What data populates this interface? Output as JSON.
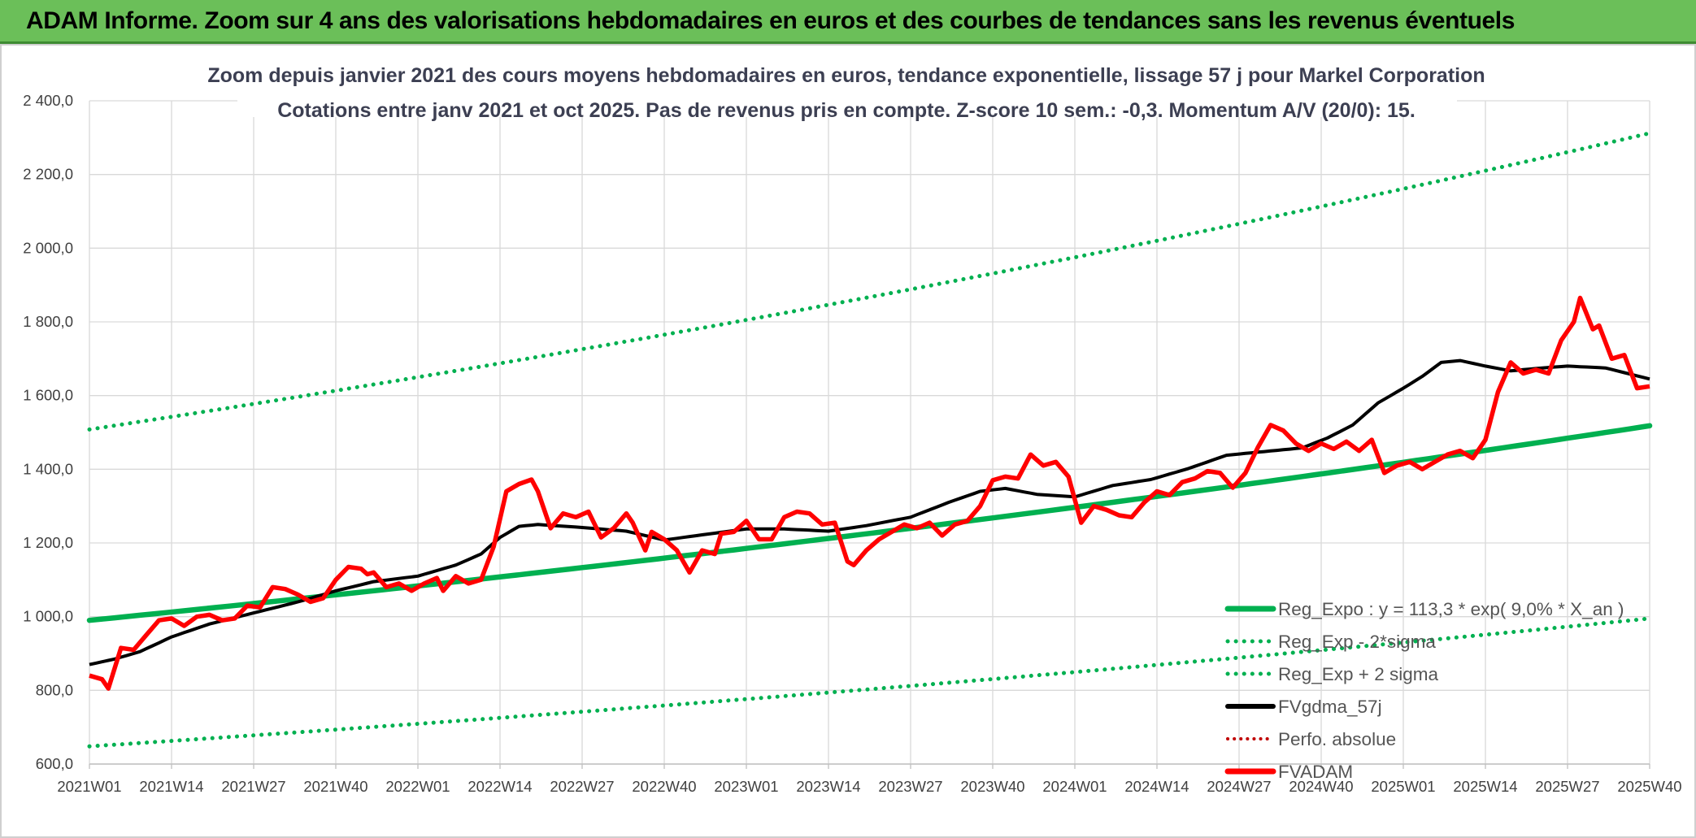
{
  "header": {
    "banner": "ADAM Informe. Zoom sur 4 ans des valorisations hebdomadaires en euros et des courbes de tendances sans les revenus éventuels"
  },
  "colors": {
    "banner_bg": "#6bbf59",
    "reg_expo": "#00b050",
    "fv_adam": "#ff0000",
    "fv_gdma": "#000000",
    "perfo": "#c00000",
    "grid": "#d9d9d9"
  },
  "chart_data": {
    "type": "line",
    "title": "Zoom depuis janvier 2021 des cours moyens hebdomadaires en euros, tendance exponentielle, lissage 57 j pour Markel Corporation",
    "subtitle": "Cotations entre janv 2021 et oct 2025. Pas de revenus pris en compte. Z-score 10 sem.: -0,3. Momentum A/V (20/0): 15.",
    "xlabel": "",
    "ylabel": "",
    "ylim": [
      600,
      2400
    ],
    "yticks": [
      600,
      800,
      1000,
      1200,
      1400,
      1600,
      1800,
      2000,
      2200,
      2400
    ],
    "ytick_labels": [
      "600,0",
      "800,0",
      "1 000,0",
      "1 200,0",
      "1 400,0",
      "1 600,0",
      "1 800,0",
      "2 000,0",
      "2 200,0",
      "2 400,0"
    ],
    "x_count": 248,
    "x_tick_index": [
      0,
      13,
      26,
      39,
      52,
      65,
      78,
      91,
      104,
      117,
      130,
      143,
      156,
      169,
      182,
      195,
      208,
      221,
      234,
      247
    ],
    "x_tick_labels": [
      "2021W01",
      "2021W14",
      "2021W27",
      "2021W40",
      "2022W01",
      "2022W14",
      "2022W27",
      "2022W40",
      "2023W01",
      "2023W14",
      "2023W27",
      "2023W40",
      "2024W01",
      "2024W14",
      "2024W27",
      "2024W40",
      "2025W01",
      "2025W14",
      "2025W27",
      "2025W40"
    ],
    "grid": true,
    "legend_position": "bottom-right",
    "series": [
      {
        "name": "Reg_Expo : y = 113,3 * exp( 9,0% *  X_an )",
        "style": "solid-thick",
        "color": "#00b050",
        "start": 990,
        "end": 1518
      },
      {
        "name": "Reg_Exp - 2*sigma",
        "style": "dotted",
        "color": "#00b050",
        "start": 648,
        "end": 995
      },
      {
        "name": "Reg_Exp + 2 sigma",
        "style": "dotted",
        "color": "#00b050",
        "start": 1508,
        "end": 2312
      },
      {
        "name": "FVgdma_57j",
        "style": "solid",
        "color": "#000000",
        "anchors": [
          [
            0,
            870
          ],
          [
            4,
            885
          ],
          [
            8,
            905
          ],
          [
            13,
            945
          ],
          [
            19,
            980
          ],
          [
            26,
            1010
          ],
          [
            33,
            1040
          ],
          [
            39,
            1070
          ],
          [
            45,
            1095
          ],
          [
            52,
            1110
          ],
          [
            58,
            1140
          ],
          [
            62,
            1170
          ],
          [
            65,
            1215
          ],
          [
            68,
            1245
          ],
          [
            71,
            1250
          ],
          [
            78,
            1242
          ],
          [
            85,
            1232
          ],
          [
            91,
            1208
          ],
          [
            97,
            1222
          ],
          [
            104,
            1238
          ],
          [
            110,
            1238
          ],
          [
            117,
            1232
          ],
          [
            123,
            1247
          ],
          [
            130,
            1270
          ],
          [
            136,
            1310
          ],
          [
            141,
            1340
          ],
          [
            145,
            1348
          ],
          [
            150,
            1332
          ],
          [
            156,
            1325
          ],
          [
            162,
            1356
          ],
          [
            168,
            1372
          ],
          [
            174,
            1402
          ],
          [
            180,
            1438
          ],
          [
            186,
            1448
          ],
          [
            192,
            1458
          ],
          [
            196,
            1485
          ],
          [
            200,
            1520
          ],
          [
            204,
            1580
          ],
          [
            208,
            1620
          ],
          [
            211,
            1652
          ],
          [
            214,
            1690
          ],
          [
            217,
            1695
          ],
          [
            221,
            1680
          ],
          [
            225,
            1667
          ],
          [
            230,
            1675
          ],
          [
            234,
            1680
          ],
          [
            240,
            1675
          ],
          [
            247,
            1645
          ]
        ]
      },
      {
        "name": "Perfo. absolue",
        "style": "dotted",
        "color": "#c00000",
        "points": []
      },
      {
        "name": "FVADAM",
        "style": "solid-thick",
        "color": "#ff0000",
        "anchors": [
          [
            0,
            840
          ],
          [
            2,
            830
          ],
          [
            3,
            805
          ],
          [
            5,
            915
          ],
          [
            7,
            910
          ],
          [
            9,
            950
          ],
          [
            11,
            990
          ],
          [
            13,
            995
          ],
          [
            15,
            975
          ],
          [
            17,
            1000
          ],
          [
            19,
            1005
          ],
          [
            21,
            990
          ],
          [
            23,
            995
          ],
          [
            25,
            1030
          ],
          [
            27,
            1025
          ],
          [
            29,
            1080
          ],
          [
            31,
            1075
          ],
          [
            33,
            1060
          ],
          [
            35,
            1040
          ],
          [
            37,
            1050
          ],
          [
            39,
            1100
          ],
          [
            41,
            1135
          ],
          [
            43,
            1130
          ],
          [
            44,
            1115
          ],
          [
            45,
            1120
          ],
          [
            47,
            1080
          ],
          [
            49,
            1090
          ],
          [
            51,
            1070
          ],
          [
            53,
            1090
          ],
          [
            55,
            1105
          ],
          [
            56,
            1070
          ],
          [
            58,
            1110
          ],
          [
            60,
            1090
          ],
          [
            62,
            1100
          ],
          [
            64,
            1190
          ],
          [
            66,
            1340
          ],
          [
            68,
            1360
          ],
          [
            70,
            1372
          ],
          [
            71,
            1340
          ],
          [
            72,
            1290
          ],
          [
            73,
            1240
          ],
          [
            75,
            1280
          ],
          [
            77,
            1270
          ],
          [
            79,
            1285
          ],
          [
            81,
            1215
          ],
          [
            83,
            1240
          ],
          [
            85,
            1280
          ],
          [
            86,
            1255
          ],
          [
            88,
            1180
          ],
          [
            89,
            1230
          ],
          [
            91,
            1210
          ],
          [
            93,
            1180
          ],
          [
            95,
            1120
          ],
          [
            97,
            1180
          ],
          [
            99,
            1170
          ],
          [
            100,
            1225
          ],
          [
            102,
            1230
          ],
          [
            104,
            1260
          ],
          [
            106,
            1210
          ],
          [
            108,
            1210
          ],
          [
            110,
            1270
          ],
          [
            112,
            1285
          ],
          [
            114,
            1280
          ],
          [
            116,
            1250
          ],
          [
            118,
            1255
          ],
          [
            120,
            1150
          ],
          [
            121,
            1140
          ],
          [
            123,
            1180
          ],
          [
            125,
            1210
          ],
          [
            127,
            1230
          ],
          [
            129,
            1250
          ],
          [
            131,
            1240
          ],
          [
            133,
            1255
          ],
          [
            135,
            1220
          ],
          [
            137,
            1250
          ],
          [
            139,
            1260
          ],
          [
            141,
            1300
          ],
          [
            143,
            1370
          ],
          [
            145,
            1380
          ],
          [
            147,
            1375
          ],
          [
            149,
            1440
          ],
          [
            151,
            1410
          ],
          [
            153,
            1420
          ],
          [
            155,
            1380
          ],
          [
            157,
            1255
          ],
          [
            159,
            1300
          ],
          [
            161,
            1290
          ],
          [
            163,
            1275
          ],
          [
            165,
            1270
          ],
          [
            167,
            1310
          ],
          [
            169,
            1340
          ],
          [
            171,
            1330
          ],
          [
            173,
            1365
          ],
          [
            175,
            1375
          ],
          [
            177,
            1395
          ],
          [
            179,
            1390
          ],
          [
            181,
            1350
          ],
          [
            183,
            1390
          ],
          [
            185,
            1460
          ],
          [
            187,
            1520
          ],
          [
            189,
            1505
          ],
          [
            191,
            1470
          ],
          [
            193,
            1450
          ],
          [
            195,
            1470
          ],
          [
            197,
            1455
          ],
          [
            199,
            1475
          ],
          [
            201,
            1450
          ],
          [
            203,
            1480
          ],
          [
            205,
            1390
          ],
          [
            207,
            1410
          ],
          [
            209,
            1420
          ],
          [
            211,
            1400
          ],
          [
            213,
            1420
          ],
          [
            215,
            1440
          ],
          [
            217,
            1450
          ],
          [
            219,
            1430
          ],
          [
            221,
            1480
          ],
          [
            223,
            1610
          ],
          [
            225,
            1690
          ],
          [
            227,
            1660
          ],
          [
            229,
            1670
          ],
          [
            231,
            1660
          ],
          [
            233,
            1750
          ],
          [
            235,
            1800
          ],
          [
            236,
            1865
          ],
          [
            238,
            1780
          ],
          [
            239,
            1790
          ],
          [
            241,
            1700
          ],
          [
            243,
            1710
          ],
          [
            245,
            1620
          ],
          [
            247,
            1560
          ]
        ]
      }
    ]
  }
}
